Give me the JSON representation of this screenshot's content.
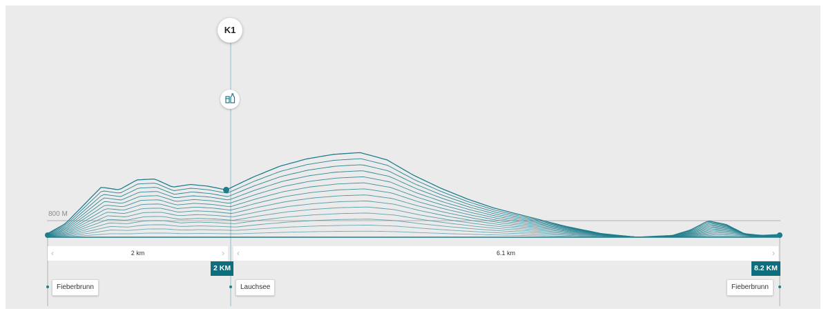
{
  "checkpoint": {
    "label": "K1",
    "icon": "aid-station-icon"
  },
  "elevation_reference": "800 M",
  "segments": [
    {
      "label": "2 km"
    },
    {
      "label": "6.1 km"
    }
  ],
  "markers": [
    {
      "km_label": "2 KM"
    },
    {
      "km_label": "8.2 KM"
    }
  ],
  "places": [
    {
      "name": "Fieberbrunn"
    },
    {
      "name": "Lauchsee"
    },
    {
      "name": "Fieberbrunn"
    }
  ],
  "colors": {
    "profile": "#1e7d8c",
    "badge": "#0f6e7e",
    "panel": "#ebebec"
  },
  "chart_data": {
    "type": "area",
    "title": "",
    "xlabel": "",
    "ylabel": "",
    "x_unit": "km",
    "x": [
      0,
      0.2,
      0.4,
      0.6,
      0.8,
      1.0,
      1.2,
      1.4,
      1.6,
      1.8,
      2.0,
      2.3,
      2.6,
      2.9,
      3.2,
      3.5,
      3.8,
      4.1,
      4.4,
      4.7,
      5.0,
      5.4,
      5.8,
      6.2,
      6.6,
      7.0,
      7.2,
      7.4,
      7.6,
      7.8,
      8.0,
      8.2
    ],
    "y": [
      0.04,
      0.15,
      0.35,
      0.55,
      0.52,
      0.63,
      0.64,
      0.55,
      0.58,
      0.56,
      0.52,
      0.66,
      0.78,
      0.86,
      0.91,
      0.93,
      0.85,
      0.68,
      0.54,
      0.42,
      0.32,
      0.22,
      0.12,
      0.04,
      0.0,
      0.02,
      0.08,
      0.18,
      0.14,
      0.04,
      0.02,
      0.03
    ],
    "checkpoint_km": 2.0,
    "total_km": 8.2,
    "reference_line": "800 M"
  }
}
